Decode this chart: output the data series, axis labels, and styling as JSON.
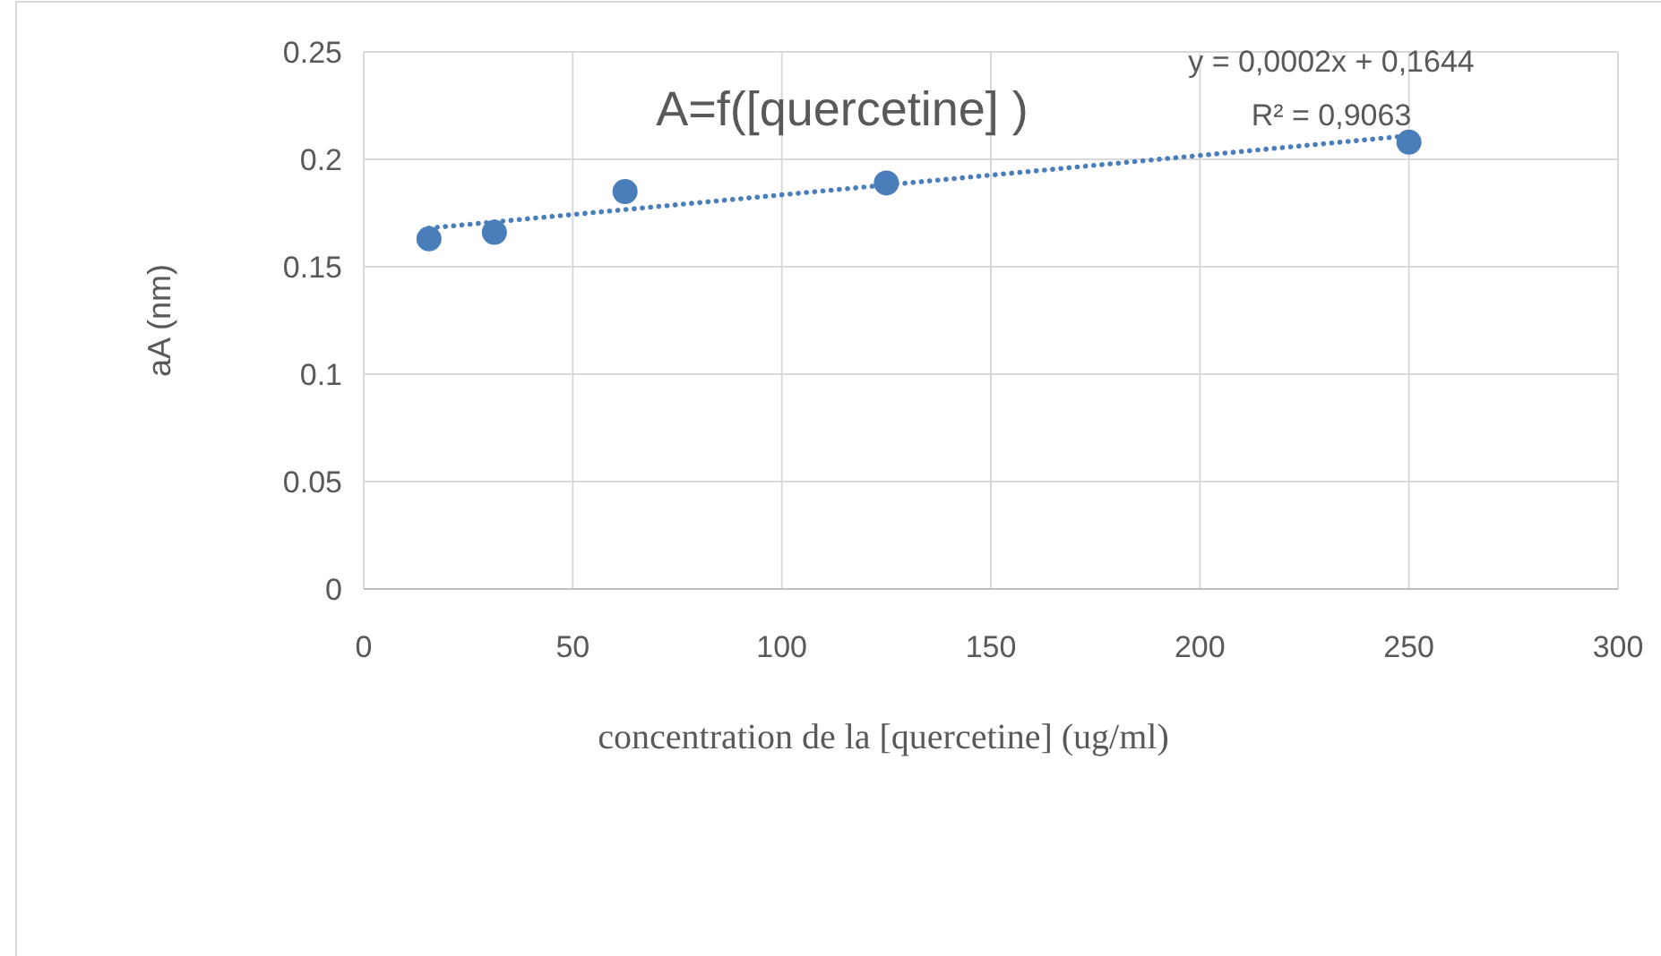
{
  "chart_data": {
    "type": "scatter",
    "title": "A=f([quercetine] )",
    "xlabel": "concentration de la [quercetine] (ug/ml)",
    "ylabel": "aA (nm)",
    "annotations": [
      "y = 0,0002x + 0,1644",
      "R² = 0,9063"
    ],
    "xlim": [
      0,
      300
    ],
    "xticks": [
      0,
      50,
      100,
      150,
      200,
      250,
      300
    ],
    "ylim": [
      0,
      0.25
    ],
    "yticks": [
      0,
      0.05,
      0.1,
      0.15,
      0.2,
      0.25
    ],
    "grid": true,
    "series": [
      {
        "color": "#4a7ebb",
        "marker": "circle",
        "x": [
          15.6,
          31.25,
          62.5,
          125,
          250
        ],
        "values": [
          0.163,
          0.166,
          0.185,
          0.189,
          0.208
        ]
      },
      {
        "type": "line",
        "color": "#4a7ebb",
        "marker": "none",
        "line_style": "dotted",
        "x": [
          15.6,
          250
        ],
        "values": [
          0.168,
          0.211
        ]
      }
    ]
  }
}
